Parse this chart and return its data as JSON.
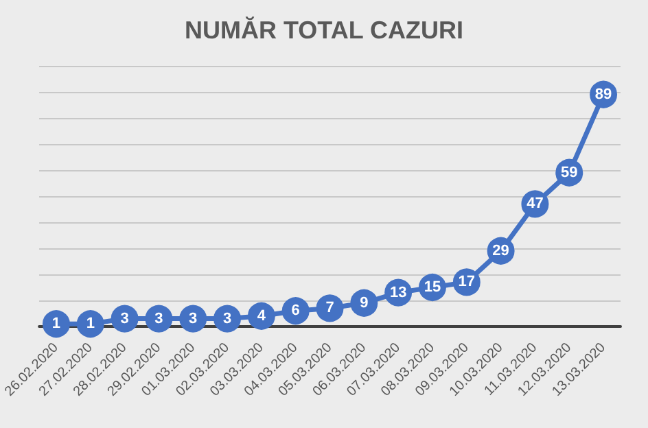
{
  "chart_data": {
    "type": "line",
    "title": "NUMĂR TOTAL CAZURI",
    "categories": [
      "26.02.2020",
      "27.02.2020",
      "28.02.2020",
      "29.02.2020",
      "01.03.2020",
      "02.03.2020",
      "03.03.2020",
      "04.03.2020",
      "05.03.2020",
      "06.03.2020",
      "07.03.2020",
      "08.03.2020",
      "09.03.2020",
      "10.03.2020",
      "11.03.2020",
      "12.03.2020",
      "13.03.2020"
    ],
    "series": [
      {
        "color": "#4472c4",
        "values": [
          1,
          1,
          3,
          3,
          3,
          3,
          4,
          6,
          7,
          9,
          13,
          15,
          17,
          29,
          47,
          59,
          89
        ]
      }
    ],
    "ylim": [
      0,
      100
    ],
    "yticks": [
      0,
      10,
      20,
      30,
      40,
      50,
      60,
      70,
      80,
      90,
      100
    ],
    "grid": "y",
    "tick_labels": "x",
    "marker": "circle",
    "line_style": "solid",
    "data_labels": true
  }
}
